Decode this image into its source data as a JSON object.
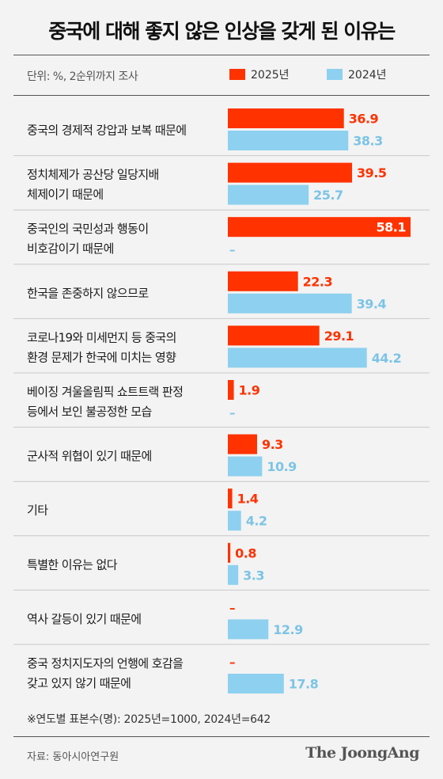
{
  "title": "중국에 대해 좋지 않은 인상을 갖게 된 이유는",
  "unit_note": "단위: %, 2순위까지 조사",
  "colors": {
    "y2025": "#ff3200",
    "y2024": "#8ed0ef",
    "label2025": "#ff3200",
    "label2024": "#7cc4e6"
  },
  "chart_data": {
    "type": "bar",
    "orientation": "horizontal",
    "categories": [
      [
        "중국의 경제적 강압과 보복 때문에"
      ],
      [
        "정치체제가 공산당 일당지배",
        "체제이기 때문에"
      ],
      [
        "중국인의 국민성과 행동이",
        "비호감이기 때문에"
      ],
      [
        "한국을 존중하지 않으므로"
      ],
      [
        "코로나19와 미세먼지 등 중국의",
        "환경 문제가 한국에 미치는 영향"
      ],
      [
        "베이징 겨울올림픽 쇼트트랙 판정",
        "등에서 보인 불공정한 모습"
      ],
      [
        "군사적 위협이 있기 때문에"
      ],
      [
        "기타"
      ],
      [
        "특별한 이유는 없다"
      ],
      [
        "역사 갈등이 있기 때문에"
      ],
      [
        "중국 정치지도자의 언행에 호감을",
        "갖고 있지 않기 때문에"
      ]
    ],
    "series": [
      {
        "name": "2025년",
        "values": [
          36.9,
          39.5,
          58.1,
          22.3,
          29.1,
          1.9,
          9.3,
          1.4,
          0.8,
          null,
          null
        ]
      },
      {
        "name": "2024년",
        "values": [
          38.3,
          25.7,
          null,
          39.4,
          44.2,
          null,
          10.9,
          4.2,
          3.3,
          12.9,
          17.8
        ]
      }
    ],
    "missing_label": "–",
    "xlim": [
      0,
      58.1
    ]
  },
  "footnote": "※연도별 표본수(명): 2025년=1000, 2024년=642",
  "source": "자료: 동아시아연구원",
  "logo": "The JoongAng"
}
